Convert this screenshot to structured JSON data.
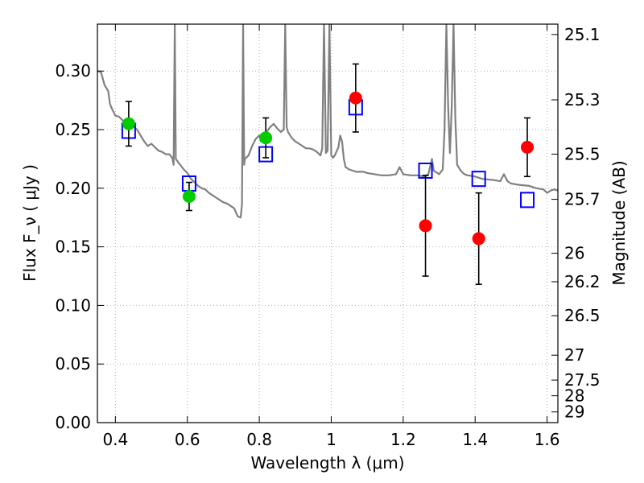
{
  "chart_data": {
    "type": "scatter",
    "title": "",
    "xlabel": "Wavelength  λ (μm)",
    "ylabel": "Flux  F_ν  ( μJy )",
    "y2label": "Magnitude (AB)",
    "xlim": [
      0.35,
      1.63
    ],
    "ylim": [
      0.0,
      0.34
    ],
    "grid": true,
    "x_ticks": [
      0.4,
      0.6,
      0.8,
      1.0,
      1.2,
      1.4,
      1.6
    ],
    "x_tick_labels": [
      "0.4",
      "0.6",
      "0.8",
      "1",
      "1.2",
      "1.4",
      "1.6"
    ],
    "y_ticks": [
      0.0,
      0.05,
      0.1,
      0.15,
      0.2,
      0.25,
      0.3
    ],
    "y_tick_labels": [
      "0.00",
      "0.05",
      "0.10",
      "0.15",
      "0.20",
      "0.25",
      "0.30"
    ],
    "y2_ticks": [
      "25.1",
      "25.3",
      "25.5",
      "25.7",
      "26",
      "26.2",
      "26.5",
      "27",
      "27.5",
      "28",
      "29"
    ],
    "colors": {
      "model_sed": "#808080",
      "model_photometry": "#0000ff",
      "detection_green": "#00cc00",
      "detection_red": "#ff0000",
      "errorbar": "#000000",
      "grid": "#b0b0b0"
    },
    "series": [
      {
        "kind": "line",
        "points": [
          [
            0.35,
            0.3
          ],
          [
            0.36,
            0.299
          ],
          [
            0.37,
            0.288
          ],
          [
            0.38,
            0.283
          ],
          [
            0.385,
            0.272
          ],
          [
            0.39,
            0.268
          ],
          [
            0.4,
            0.262
          ],
          [
            0.41,
            0.261
          ],
          [
            0.42,
            0.258
          ],
          [
            0.43,
            0.253
          ],
          [
            0.44,
            0.251
          ],
          [
            0.45,
            0.253
          ],
          [
            0.46,
            0.25
          ],
          [
            0.47,
            0.245
          ],
          [
            0.48,
            0.24
          ],
          [
            0.49,
            0.236
          ],
          [
            0.5,
            0.238
          ],
          [
            0.51,
            0.235
          ],
          [
            0.52,
            0.232
          ],
          [
            0.53,
            0.231
          ],
          [
            0.54,
            0.229
          ],
          [
            0.55,
            0.229
          ],
          [
            0.558,
            0.226
          ],
          [
            0.562,
            0.22
          ],
          [
            0.565,
            0.34
          ],
          [
            0.568,
            0.225
          ],
          [
            0.575,
            0.222
          ],
          [
            0.58,
            0.22
          ],
          [
            0.59,
            0.216
          ],
          [
            0.6,
            0.213
          ],
          [
            0.61,
            0.208
          ],
          [
            0.62,
            0.205
          ],
          [
            0.63,
            0.202
          ],
          [
            0.64,
            0.2
          ],
          [
            0.65,
            0.199
          ],
          [
            0.66,
            0.196
          ],
          [
            0.67,
            0.194
          ],
          [
            0.68,
            0.192
          ],
          [
            0.69,
            0.19
          ],
          [
            0.7,
            0.188
          ],
          [
            0.71,
            0.187
          ],
          [
            0.72,
            0.185
          ],
          [
            0.73,
            0.183
          ],
          [
            0.74,
            0.176
          ],
          [
            0.748,
            0.175
          ],
          [
            0.752,
            0.186
          ],
          [
            0.755,
            0.34
          ],
          [
            0.758,
            0.22
          ],
          [
            0.76,
            0.225
          ],
          [
            0.77,
            0.228
          ],
          [
            0.78,
            0.236
          ],
          [
            0.79,
            0.242
          ],
          [
            0.8,
            0.245
          ],
          [
            0.805,
            0.24
          ],
          [
            0.81,
            0.243
          ],
          [
            0.82,
            0.248
          ],
          [
            0.83,
            0.252
          ],
          [
            0.84,
            0.255
          ],
          [
            0.85,
            0.251
          ],
          [
            0.86,
            0.248
          ],
          [
            0.868,
            0.25
          ],
          [
            0.872,
            0.34
          ],
          [
            0.876,
            0.252
          ],
          [
            0.88,
            0.248
          ],
          [
            0.89,
            0.243
          ],
          [
            0.9,
            0.24
          ],
          [
            0.91,
            0.238
          ],
          [
            0.92,
            0.236
          ],
          [
            0.93,
            0.234
          ],
          [
            0.94,
            0.234
          ],
          [
            0.95,
            0.233
          ],
          [
            0.96,
            0.231
          ],
          [
            0.97,
            0.228
          ],
          [
            0.975,
            0.234
          ],
          [
            0.98,
            0.34
          ],
          [
            0.985,
            0.23
          ],
          [
            0.99,
            0.232
          ],
          [
            0.995,
            0.34
          ],
          [
            1.0,
            0.228
          ],
          [
            1.005,
            0.226
          ],
          [
            1.01,
            0.228
          ],
          [
            1.02,
            0.235
          ],
          [
            1.025,
            0.245
          ],
          [
            1.03,
            0.24
          ],
          [
            1.035,
            0.225
          ],
          [
            1.04,
            0.218
          ],
          [
            1.05,
            0.216
          ],
          [
            1.06,
            0.215
          ],
          [
            1.07,
            0.214
          ],
          [
            1.08,
            0.214
          ],
          [
            1.09,
            0.214
          ],
          [
            1.1,
            0.213
          ],
          [
            1.12,
            0.212
          ],
          [
            1.14,
            0.211
          ],
          [
            1.16,
            0.211
          ],
          [
            1.18,
            0.212
          ],
          [
            1.19,
            0.218
          ],
          [
            1.2,
            0.212
          ],
          [
            1.22,
            0.211
          ],
          [
            1.24,
            0.211
          ],
          [
            1.26,
            0.21
          ],
          [
            1.27,
            0.212
          ],
          [
            1.28,
            0.225
          ],
          [
            1.285,
            0.215
          ],
          [
            1.3,
            0.212
          ],
          [
            1.31,
            0.216
          ],
          [
            1.315,
            0.25
          ],
          [
            1.32,
            0.34
          ],
          [
            1.325,
            0.27
          ],
          [
            1.33,
            0.23
          ],
          [
            1.335,
            0.27
          ],
          [
            1.34,
            0.34
          ],
          [
            1.345,
            0.26
          ],
          [
            1.35,
            0.22
          ],
          [
            1.36,
            0.215
          ],
          [
            1.37,
            0.212
          ],
          [
            1.38,
            0.211
          ],
          [
            1.4,
            0.21
          ],
          [
            1.42,
            0.208
          ],
          [
            1.45,
            0.207
          ],
          [
            1.47,
            0.206
          ],
          [
            1.48,
            0.212
          ],
          [
            1.49,
            0.206
          ],
          [
            1.5,
            0.204
          ],
          [
            1.52,
            0.203
          ],
          [
            1.55,
            0.202
          ],
          [
            1.57,
            0.2
          ],
          [
            1.59,
            0.199
          ],
          [
            1.6,
            0.196
          ],
          [
            1.61,
            0.198
          ],
          [
            1.62,
            0.199
          ],
          [
            1.63,
            0.198
          ]
        ]
      },
      {
        "kind": "squares",
        "points": [
          [
            0.437,
            0.249
          ],
          [
            0.605,
            0.204
          ],
          [
            0.818,
            0.229
          ],
          [
            1.068,
            0.269
          ],
          [
            1.262,
            0.215
          ],
          [
            1.41,
            0.208
          ],
          [
            1.545,
            0.19
          ]
        ]
      },
      {
        "kind": "points_with_errors",
        "points": [
          {
            "x": 0.437,
            "y": 0.255,
            "err": 0.019,
            "color": "#00cc00"
          },
          {
            "x": 0.605,
            "y": 0.193,
            "err": 0.012,
            "color": "#00cc00"
          },
          {
            "x": 0.818,
            "y": 0.243,
            "err": 0.017,
            "color": "#00cc00"
          },
          {
            "x": 1.068,
            "y": 0.277,
            "err": 0.029,
            "color": "#ff0000"
          },
          {
            "x": 1.262,
            "y": 0.168,
            "err": 0.043,
            "color": "#ff0000"
          },
          {
            "x": 1.41,
            "y": 0.157,
            "err": 0.039,
            "color": "#ff0000"
          },
          {
            "x": 1.545,
            "y": 0.235,
            "err": 0.025,
            "color": "#ff0000"
          }
        ]
      }
    ]
  }
}
